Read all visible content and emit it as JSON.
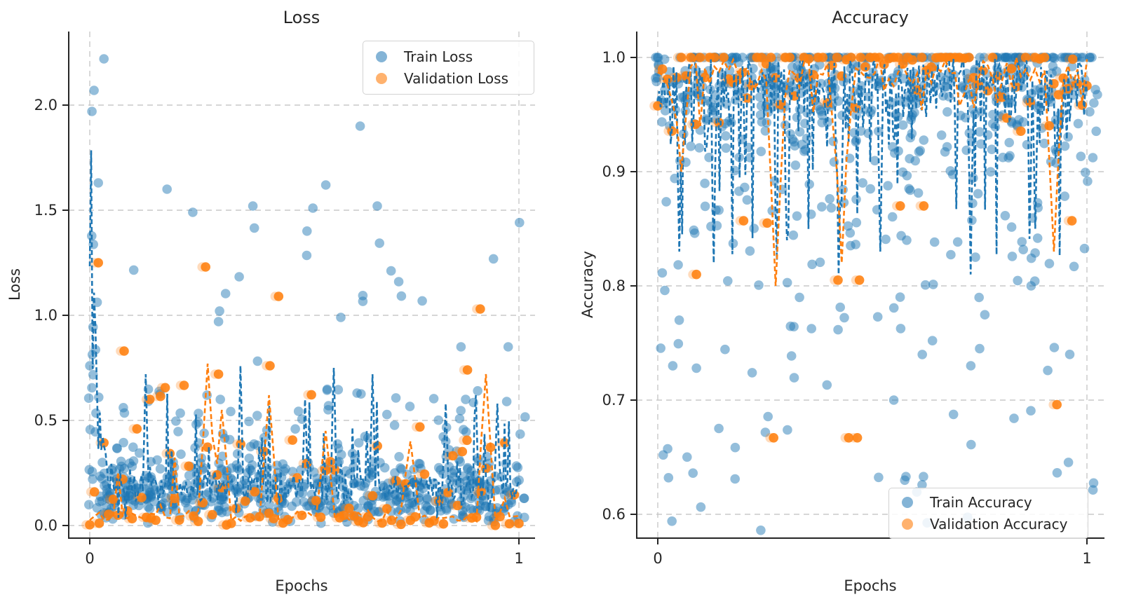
{
  "figure": {
    "background": "#ffffff",
    "text_color": "#262626",
    "grid_color": "#c9c9c9"
  },
  "chart_data": [
    {
      "id": "loss",
      "type": "scatter",
      "title": "Loss",
      "xlabel": "Epochs",
      "ylabel": "Loss",
      "xlim": [
        -0.05,
        1.04
      ],
      "ylim": [
        -0.06,
        2.35
      ],
      "xticks": [
        0,
        1
      ],
      "xtick_labels": [
        "0",
        "1"
      ],
      "yticks": [
        0.0,
        0.5,
        1.0,
        1.5,
        2.0
      ],
      "ytick_labels": [
        "0.0",
        "0.5",
        "1.0",
        "1.5",
        "2.0"
      ],
      "grid": true,
      "legend": {
        "position": "upper right",
        "entries": [
          {
            "label": "Train Loss",
            "color": "#1f77b4"
          },
          {
            "label": "Validation Loss",
            "color": "#ff7f0e"
          }
        ]
      },
      "series": [
        {
          "name": "Train Loss",
          "color": "#1f77b4",
          "marker": "circle",
          "marker_opacity": 0.48,
          "n": 640,
          "seed": 11,
          "gen": "lossTrain",
          "params": {
            "early_x": 0.018,
            "early_lo": 0.25,
            "early_hi": 1.6,
            "outlier_rate": 0.03,
            "outlier_lo": 0.62,
            "outlier_hi": 1.52,
            "mid_rate": 0.115,
            "mid_lo": 0.4,
            "mid_hi": 0.65,
            "bulk_sd": 0.2,
            "bulk_u": 0.12
          },
          "notable_points": [
            [
              0.005,
              1.97
            ],
            [
              0.01,
              2.07
            ],
            [
              0.033,
              2.22
            ],
            [
              0.02,
              1.63
            ],
            [
              0.18,
              1.6
            ],
            [
              0.24,
              1.49
            ],
            [
              0.38,
              1.52
            ],
            [
              0.52,
              1.51
            ],
            [
              0.55,
              1.62
            ],
            [
              0.63,
              1.9
            ],
            [
              0.67,
              1.52
            ],
            [
              0.72,
              1.16
            ],
            [
              0.3,
              0.97
            ],
            [
              0.585,
              0.99
            ],
            [
              0.975,
              0.85
            ],
            [
              0.865,
              0.85
            ]
          ],
          "line": {
            "gen": "lossTrainLine",
            "seed": 51,
            "n": 300,
            "params": {
              "base_min": 0.17,
              "base_amp": 1.62,
              "decay": 70,
              "peak": 1.8,
              "floor": 0.015
            },
            "spikes": [
              [
                0.13,
                0.72
              ],
              [
                0.35,
                0.76
              ],
              [
                0.5,
                0.6
              ],
              [
                0.57,
                0.75
              ],
              [
                0.66,
                0.72
              ],
              [
                0.83,
                0.58
              ],
              [
                0.9,
                0.62
              ],
              [
                0.95,
                0.58
              ]
            ]
          }
        },
        {
          "name": "Validation Loss",
          "color": "#ff7f0e",
          "marker": "circle",
          "marker_opacity": 0.88,
          "ghost_opacity": 0.28,
          "n": 92,
          "seed": 23,
          "gen": "lossVal",
          "params": {
            "zero_rate": 0.5,
            "zero_hi": 0.05,
            "mid_rate": 0.86,
            "mid_lo": 0.05,
            "mid_hi": 0.41,
            "hi_lo": 0.4,
            "hi_hi": 0.68
          },
          "notable_points": [
            [
              0.02,
              1.25
            ],
            [
              0.27,
              1.23
            ],
            [
              0.44,
              1.09
            ],
            [
              0.91,
              1.03
            ],
            [
              0.08,
              0.83
            ],
            [
              0.42,
              0.76
            ],
            [
              0.88,
              0.74
            ],
            [
              0.3,
              0.72
            ],
            [
              0.14,
              0.6
            ]
          ],
          "line": {
            "gen": "lossValLine",
            "seed": 61,
            "n": 92,
            "params": {
              "base": 0.02,
              "sd": 0.05,
              "spike_rate": 0.1,
              "spike_amp": 0.32,
              "floor": 0.004,
              "cap": 0.78
            },
            "spikes": [
              [
                0.27,
                0.77
              ],
              [
                0.305,
                0.55
              ],
              [
                0.42,
                0.62
              ],
              [
                0.55,
                0.45
              ],
              [
                0.75,
                0.4
              ],
              [
                0.92,
                0.72
              ]
            ]
          }
        }
      ]
    },
    {
      "id": "acc",
      "type": "scatter",
      "title": "Accuracy",
      "xlabel": "Epochs",
      "ylabel": "Accuracy",
      "xlim": [
        -0.05,
        1.04
      ],
      "ylim": [
        0.58,
        1.023
      ],
      "xticks": [
        0,
        1
      ],
      "xtick_labels": [
        "0",
        "1"
      ],
      "yticks": [
        0.6,
        0.7,
        0.8,
        0.9,
        1.0
      ],
      "ytick_labels": [
        "0.6",
        "0.7",
        "0.8",
        "0.9",
        "1.0"
      ],
      "grid": true,
      "legend": {
        "position": "lower right",
        "entries": [
          {
            "label": "Train Accuracy",
            "color": "#1f77b4"
          },
          {
            "label": "Validation Accuracy",
            "color": "#ff7f0e"
          }
        ]
      },
      "series": [
        {
          "name": "Train Accuracy",
          "color": "#1f77b4",
          "marker": "circle",
          "marker_opacity": 0.48,
          "n": 640,
          "seed": 31,
          "gen": "accTrain",
          "params": {
            "perfect_rate": 0.2,
            "bulk_rate": 0.8,
            "bulk_sd": 0.055,
            "mid_rate": 0.945,
            "mid_lo": 0.8,
            "mid_hi": 0.93,
            "low_lo": 0.585,
            "low_hi": 0.8
          },
          "notable_points": [
            [
              0.033,
              0.594
            ],
            [
              0.24,
              0.586
            ],
            [
              0.73,
              0.661
            ],
            [
              0.025,
              0.632
            ],
            [
              0.18,
              0.631
            ],
            [
              0.09,
              0.728
            ],
            [
              0.22,
              0.724
            ],
            [
              0.55,
              0.7
            ],
            [
              0.83,
              0.684
            ],
            [
              0.64,
              0.752
            ],
            [
              0.96,
              0.74
            ],
            [
              0.75,
              0.745
            ],
            [
              0.87,
              0.8
            ],
            [
              0.97,
              0.817
            ],
            [
              0.035,
              0.73
            ],
            [
              0.05,
              0.77
            ]
          ],
          "line": {
            "gen": "accTrainLine",
            "seed": 71,
            "n": 300,
            "params": {
              "top": 1.0,
              "sd": 0.03,
              "wob_rate": 0.45,
              "wob": 0.05,
              "dip_rate": 0.075,
              "dip": 0.13,
              "floor": 0.8
            },
            "spikes": [
              [
                0.05,
                0.83
              ],
              [
                0.13,
                0.82
              ],
              [
                0.3,
                0.84
              ],
              [
                0.42,
                0.81
              ],
              [
                0.52,
                0.83
              ],
              [
                0.73,
                0.81
              ],
              [
                0.88,
                0.85
              ]
            ]
          }
        },
        {
          "name": "Validation Accuracy",
          "color": "#ff7f0e",
          "marker": "circle",
          "marker_opacity": 0.88,
          "ghost_opacity": 0.28,
          "n": 92,
          "seed": 41,
          "gen": "accVal",
          "params": {
            "perfect_rate": 0.4,
            "sd": 0.045,
            "floor": 0.9
          },
          "notable_points": [
            [
              0.27,
              0.667
            ],
            [
              0.445,
              0.667
            ],
            [
              0.465,
              0.667
            ],
            [
              0.93,
              0.696
            ],
            [
              0.42,
              0.805
            ],
            [
              0.09,
              0.81
            ],
            [
              0.47,
              0.805
            ],
            [
              0.2,
              0.857
            ],
            [
              0.965,
              0.857
            ],
            [
              0.565,
              0.87
            ],
            [
              0.255,
              0.855
            ],
            [
              0.62,
              0.87
            ]
          ],
          "line": {
            "gen": "accValLine",
            "seed": 81,
            "n": 92,
            "params": {
              "top": 1.0,
              "sd": 0.018,
              "wob_rate": 0.3,
              "wob": 0.04,
              "floor": 0.79
            },
            "spikes": [
              [
                0.27,
                0.8
              ],
              [
                0.43,
                0.82
              ],
              [
                0.92,
                0.83
              ],
              [
                0.06,
                0.9
              ]
            ]
          }
        }
      ]
    }
  ]
}
